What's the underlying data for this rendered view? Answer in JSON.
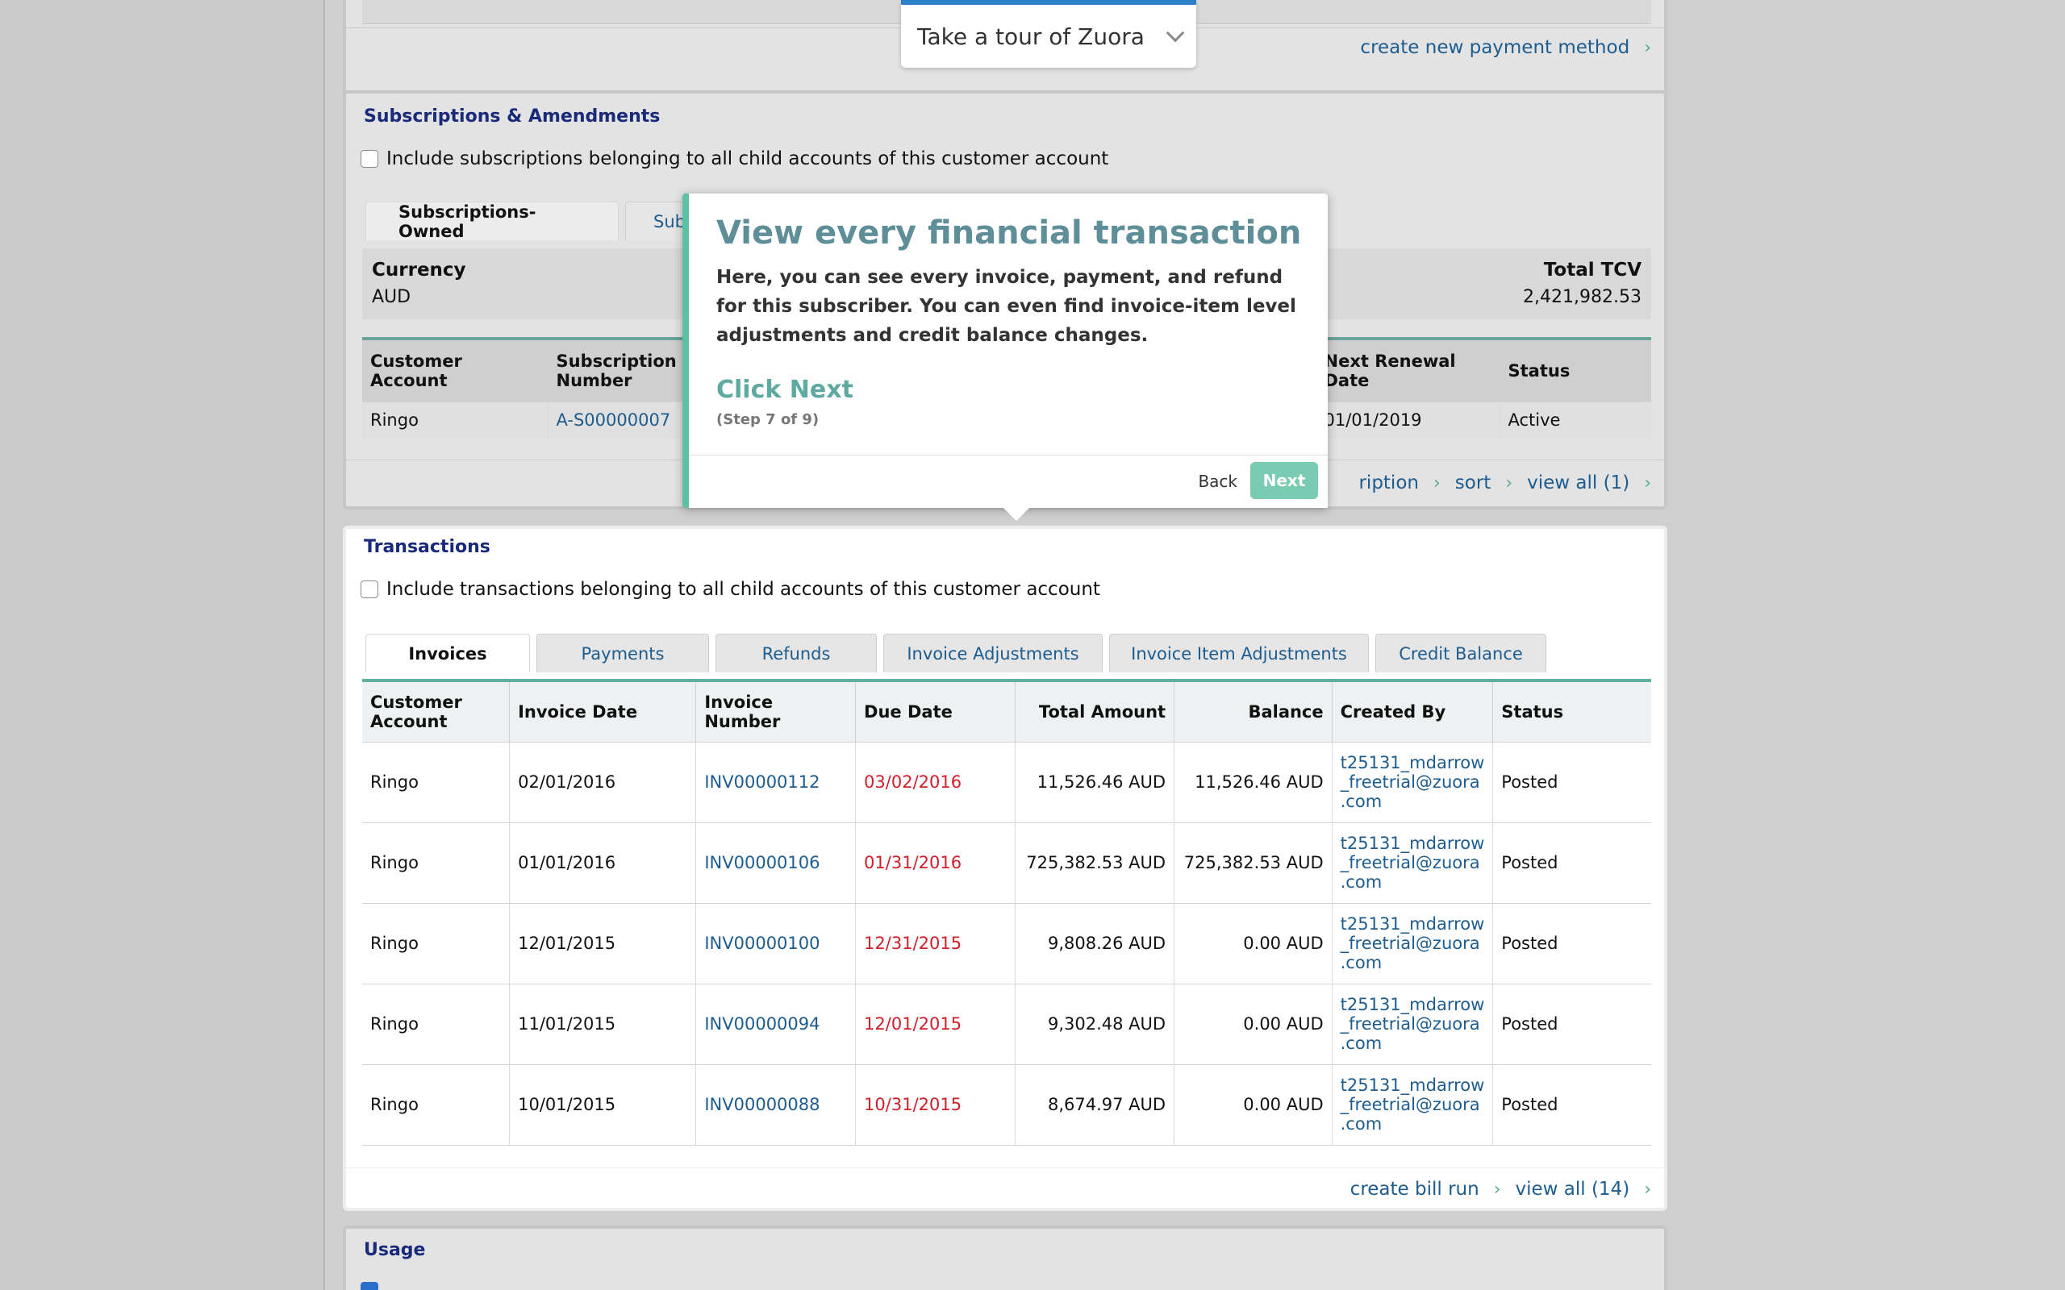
{
  "tour": {
    "title": "Take a tour of Zuora"
  },
  "payment_methods": {
    "create_link": "create new payment method"
  },
  "subscriptions": {
    "title": "Subscriptions & Amendments",
    "include_child": "Include subscriptions belonging to all child accounts of this customer account",
    "tabs": [
      "Subscriptions-Owned",
      "Sub"
    ],
    "currency_label": "Currency",
    "currency_value": "AUD",
    "tcv_label": "Total TCV",
    "tcv_value": "2,421,982.53",
    "columns": [
      "Customer Account",
      "Subscription Number",
      "Next Renewal Date",
      "Status"
    ],
    "row": {
      "account": "Ringo",
      "number": "A-S00000007",
      "renewal": "01/01/2019",
      "status": "Active"
    },
    "footer": {
      "new_link": "ription",
      "sort": "sort",
      "view_all": "view all (1)"
    }
  },
  "transactions": {
    "title": "Transactions",
    "include_child": "Include transactions belonging to all child accounts of this customer account",
    "tabs": [
      "Invoices",
      "Payments",
      "Refunds",
      "Invoice Adjustments",
      "Invoice Item Adjustments",
      "Credit Balance"
    ],
    "columns": [
      "Customer Account",
      "Invoice Date",
      "Invoice Number",
      "Due Date",
      "Total Amount",
      "Balance",
      "Created By",
      "Status"
    ],
    "rows": [
      {
        "account": "Ringo",
        "date": "02/01/2016",
        "number": "INV00000112",
        "due": "03/02/2016",
        "total": "11,526.46 AUD",
        "balance": "11,526.46 AUD",
        "created_1": "t25131_mdarrow",
        "created_2": "_freetrial@zuora",
        "created_3": ".com",
        "status": "Posted"
      },
      {
        "account": "Ringo",
        "date": "01/01/2016",
        "number": "INV00000106",
        "due": "01/31/2016",
        "total": "725,382.53 AUD",
        "balance": "725,382.53 AUD",
        "created_1": "t25131_mdarrow",
        "created_2": "_freetrial@zuora",
        "created_3": ".com",
        "status": "Posted"
      },
      {
        "account": "Ringo",
        "date": "12/01/2015",
        "number": "INV00000100",
        "due": "12/31/2015",
        "total": "9,808.26 AUD",
        "balance": "0.00 AUD",
        "created_1": "t25131_mdarrow",
        "created_2": "_freetrial@zuora",
        "created_3": ".com",
        "status": "Posted"
      },
      {
        "account": "Ringo",
        "date": "11/01/2015",
        "number": "INV00000094",
        "due": "12/01/2015",
        "total": "9,302.48 AUD",
        "balance": "0.00 AUD",
        "created_1": "t25131_mdarrow",
        "created_2": "_freetrial@zuora",
        "created_3": ".com",
        "status": "Posted"
      },
      {
        "account": "Ringo",
        "date": "10/01/2015",
        "number": "INV00000088",
        "due": "10/31/2015",
        "total": "8,674.97 AUD",
        "balance": "0.00 AUD",
        "created_1": "t25131_mdarrow",
        "created_2": "_freetrial@zuora",
        "created_3": ".com",
        "status": "Posted"
      }
    ],
    "footer": {
      "create_bill_run": "create bill run",
      "view_all": "view all (14)"
    }
  },
  "usage": {
    "title": "Usage"
  },
  "callout": {
    "title": "View every financial transaction",
    "body": "Here, you can see every invoice, payment, and refund for this subscriber. You can even find invoice-item level adjustments and credit balance changes.",
    "action": "Click Next",
    "step": "(Step 7 of 9)",
    "back": "Back",
    "next": "Next"
  },
  "colors": {
    "accent_teal": "#5ec1a5",
    "link_blue": "#1d5c8f",
    "due_red": "#d11f2a",
    "title_navy": "#1a2a7a"
  }
}
